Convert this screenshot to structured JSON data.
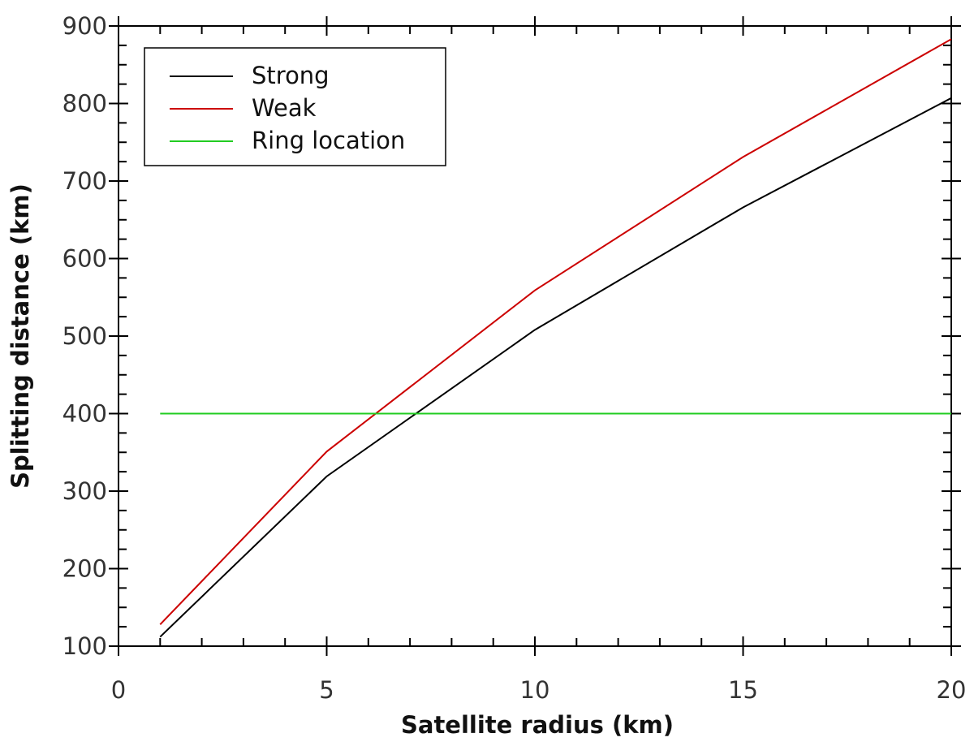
{
  "chart_data": {
    "type": "line",
    "xlabel": "Satellite radius (km)",
    "ylabel": "Splitting distance (km)",
    "x": [
      1,
      5,
      10,
      15,
      20
    ],
    "series": [
      {
        "name": "Strong",
        "color": "#000000",
        "values": [
          112,
          319,
          508,
          666,
          807
        ]
      },
      {
        "name": "Weak",
        "color": "#cc0000",
        "values": [
          128,
          351,
          559,
          731,
          883
        ]
      },
      {
        "name": "Ring location",
        "color": "#22cc22",
        "values": [
          400,
          400,
          400,
          400,
          400
        ]
      }
    ],
    "xlim": [
      0,
      20
    ],
    "xticks": [
      0,
      5,
      10,
      15,
      20
    ],
    "ylim": [
      100,
      900
    ],
    "yticks": [
      100,
      200,
      300,
      400,
      500,
      600,
      700,
      800,
      900
    ],
    "legend": "upper left"
  }
}
